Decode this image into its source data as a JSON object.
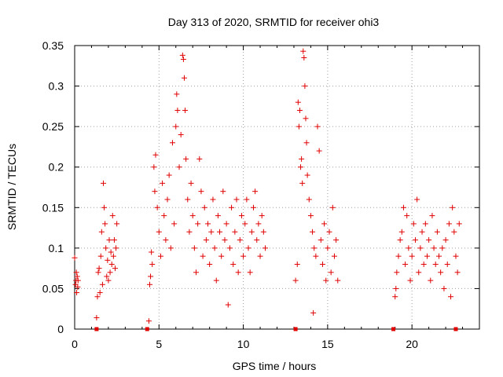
{
  "chart_data": {
    "type": "scatter",
    "title": "Day 313 of 2020, SRMTID for receiver ohi3",
    "xlabel": "GPS time / hours",
    "ylabel": "SRMTID / TECUs",
    "xlim": [
      0,
      24
    ],
    "ylim": [
      0,
      0.35
    ],
    "x_ticks": [
      0,
      5,
      10,
      15,
      20
    ],
    "x_tick_labels": [
      "0",
      "5",
      "10",
      "15",
      "20"
    ],
    "y_ticks": [
      0,
      0.05,
      0.1,
      0.15,
      0.2,
      0.25,
      0.3,
      0.35
    ],
    "y_tick_labels": [
      "0",
      "0.05",
      "0.1",
      "0.15",
      "0.2",
      "0.25",
      "0.3",
      "0.35"
    ],
    "grid": true,
    "marker": "+",
    "color": "#e00000",
    "zero_markers_x": [
      1.3,
      4.3,
      13.1,
      18.9,
      22.6
    ],
    "series": [
      {
        "name": "SRMTID",
        "points": [
          [
            0.0,
            0.088
          ],
          [
            0.05,
            0.055
          ],
          [
            0.08,
            0.06
          ],
          [
            0.1,
            0.07
          ],
          [
            0.12,
            0.045
          ],
          [
            0.15,
            0.065
          ],
          [
            0.18,
            0.052
          ],
          [
            0.2,
            0.06
          ],
          [
            1.3,
            0.014
          ],
          [
            1.35,
            0.04
          ],
          [
            1.4,
            0.07
          ],
          [
            1.45,
            0.075
          ],
          [
            1.5,
            0.045
          ],
          [
            1.55,
            0.09
          ],
          [
            1.6,
            0.12
          ],
          [
            1.65,
            0.055
          ],
          [
            1.7,
            0.18
          ],
          [
            1.75,
            0.15
          ],
          [
            1.8,
            0.13
          ],
          [
            1.85,
            0.1
          ],
          [
            1.9,
            0.065
          ],
          [
            1.95,
            0.085
          ],
          [
            2.0,
            0.06
          ],
          [
            2.05,
            0.11
          ],
          [
            2.1,
            0.07
          ],
          [
            2.15,
            0.095
          ],
          [
            2.2,
            0.08
          ],
          [
            2.25,
            0.14
          ],
          [
            2.3,
            0.09
          ],
          [
            2.35,
            0.11
          ],
          [
            2.4,
            0.075
          ],
          [
            2.45,
            0.1
          ],
          [
            2.5,
            0.13
          ],
          [
            4.4,
            0.01
          ],
          [
            4.45,
            0.055
          ],
          [
            4.5,
            0.065
          ],
          [
            4.55,
            0.095
          ],
          [
            4.6,
            0.08
          ],
          [
            4.7,
            0.2
          ],
          [
            4.75,
            0.17
          ],
          [
            4.8,
            0.215
          ],
          [
            4.9,
            0.15
          ],
          [
            5.0,
            0.12
          ],
          [
            5.1,
            0.09
          ],
          [
            5.2,
            0.18
          ],
          [
            5.3,
            0.14
          ],
          [
            5.4,
            0.11
          ],
          [
            5.5,
            0.16
          ],
          [
            5.6,
            0.19
          ],
          [
            5.7,
            0.1
          ],
          [
            5.8,
            0.23
          ],
          [
            5.9,
            0.13
          ],
          [
            6.0,
            0.25
          ],
          [
            6.05,
            0.29
          ],
          [
            6.1,
            0.27
          ],
          [
            6.2,
            0.2
          ],
          [
            6.3,
            0.24
          ],
          [
            6.4,
            0.338
          ],
          [
            6.45,
            0.333
          ],
          [
            6.5,
            0.31
          ],
          [
            6.55,
            0.27
          ],
          [
            6.6,
            0.21
          ],
          [
            6.7,
            0.16
          ],
          [
            6.8,
            0.12
          ],
          [
            6.9,
            0.18
          ],
          [
            7.0,
            0.14
          ],
          [
            7.1,
            0.1
          ],
          [
            7.2,
            0.07
          ],
          [
            7.3,
            0.13
          ],
          [
            7.4,
            0.21
          ],
          [
            7.5,
            0.17
          ],
          [
            7.6,
            0.09
          ],
          [
            7.7,
            0.15
          ],
          [
            7.8,
            0.11
          ],
          [
            7.9,
            0.13
          ],
          [
            8.0,
            0.08
          ],
          [
            8.1,
            0.12
          ],
          [
            8.2,
            0.16
          ],
          [
            8.3,
            0.1
          ],
          [
            8.4,
            0.06
          ],
          [
            8.5,
            0.14
          ],
          [
            8.6,
            0.12
          ],
          [
            8.7,
            0.09
          ],
          [
            8.8,
            0.17
          ],
          [
            8.9,
            0.11
          ],
          [
            9.0,
            0.13
          ],
          [
            9.1,
            0.03
          ],
          [
            9.2,
            0.1
          ],
          [
            9.3,
            0.15
          ],
          [
            9.4,
            0.08
          ],
          [
            9.5,
            0.12
          ],
          [
            9.6,
            0.16
          ],
          [
            9.7,
            0.07
          ],
          [
            9.8,
            0.11
          ],
          [
            9.9,
            0.14
          ],
          [
            10.0,
            0.09
          ],
          [
            10.1,
            0.13
          ],
          [
            10.2,
            0.16
          ],
          [
            10.3,
            0.1
          ],
          [
            10.4,
            0.07
          ],
          [
            10.5,
            0.12
          ],
          [
            10.6,
            0.15
          ],
          [
            10.7,
            0.17
          ],
          [
            10.8,
            0.11
          ],
          [
            10.9,
            0.13
          ],
          [
            11.0,
            0.09
          ],
          [
            11.1,
            0.14
          ],
          [
            11.2,
            0.12
          ],
          [
            11.3,
            0.1
          ],
          [
            13.1,
            0.06
          ],
          [
            13.2,
            0.08
          ],
          [
            13.25,
            0.28
          ],
          [
            13.3,
            0.25
          ],
          [
            13.35,
            0.27
          ],
          [
            13.4,
            0.2
          ],
          [
            13.45,
            0.21
          ],
          [
            13.5,
            0.18
          ],
          [
            13.55,
            0.343
          ],
          [
            13.6,
            0.335
          ],
          [
            13.65,
            0.3
          ],
          [
            13.7,
            0.26
          ],
          [
            13.75,
            0.23
          ],
          [
            13.8,
            0.19
          ],
          [
            13.9,
            0.16
          ],
          [
            14.0,
            0.14
          ],
          [
            14.1,
            0.12
          ],
          [
            14.15,
            0.02
          ],
          [
            14.2,
            0.1
          ],
          [
            14.3,
            0.09
          ],
          [
            14.4,
            0.25
          ],
          [
            14.5,
            0.22
          ],
          [
            14.6,
            0.11
          ],
          [
            14.7,
            0.08
          ],
          [
            14.8,
            0.13
          ],
          [
            14.9,
            0.06
          ],
          [
            15.0,
            0.1
          ],
          [
            15.1,
            0.12
          ],
          [
            15.2,
            0.07
          ],
          [
            15.3,
            0.15
          ],
          [
            15.4,
            0.09
          ],
          [
            15.5,
            0.11
          ],
          [
            15.6,
            0.06
          ],
          [
            19.0,
            0.04
          ],
          [
            19.05,
            0.05
          ],
          [
            19.1,
            0.07
          ],
          [
            19.2,
            0.09
          ],
          [
            19.3,
            0.11
          ],
          [
            19.4,
            0.12
          ],
          [
            19.5,
            0.15
          ],
          [
            19.6,
            0.08
          ],
          [
            19.7,
            0.14
          ],
          [
            19.8,
            0.1
          ],
          [
            19.9,
            0.06
          ],
          [
            20.0,
            0.09
          ],
          [
            20.1,
            0.13
          ],
          [
            20.2,
            0.11
          ],
          [
            20.3,
            0.16
          ],
          [
            20.4,
            0.07
          ],
          [
            20.5,
            0.1
          ],
          [
            20.6,
            0.12
          ],
          [
            20.7,
            0.08
          ],
          [
            20.8,
            0.13
          ],
          [
            20.9,
            0.09
          ],
          [
            21.0,
            0.11
          ],
          [
            21.1,
            0.06
          ],
          [
            21.2,
            0.14
          ],
          [
            21.3,
            0.1
          ],
          [
            21.4,
            0.08
          ],
          [
            21.5,
            0.12
          ],
          [
            21.6,
            0.09
          ],
          [
            21.7,
            0.07
          ],
          [
            21.8,
            0.1
          ],
          [
            21.9,
            0.05
          ],
          [
            22.0,
            0.11
          ],
          [
            22.1,
            0.08
          ],
          [
            22.2,
            0.13
          ],
          [
            22.3,
            0.04
          ],
          [
            22.4,
            0.15
          ],
          [
            22.5,
            0.12
          ],
          [
            22.6,
            0.09
          ],
          [
            22.7,
            0.07
          ],
          [
            22.8,
            0.13
          ]
        ]
      }
    ]
  }
}
